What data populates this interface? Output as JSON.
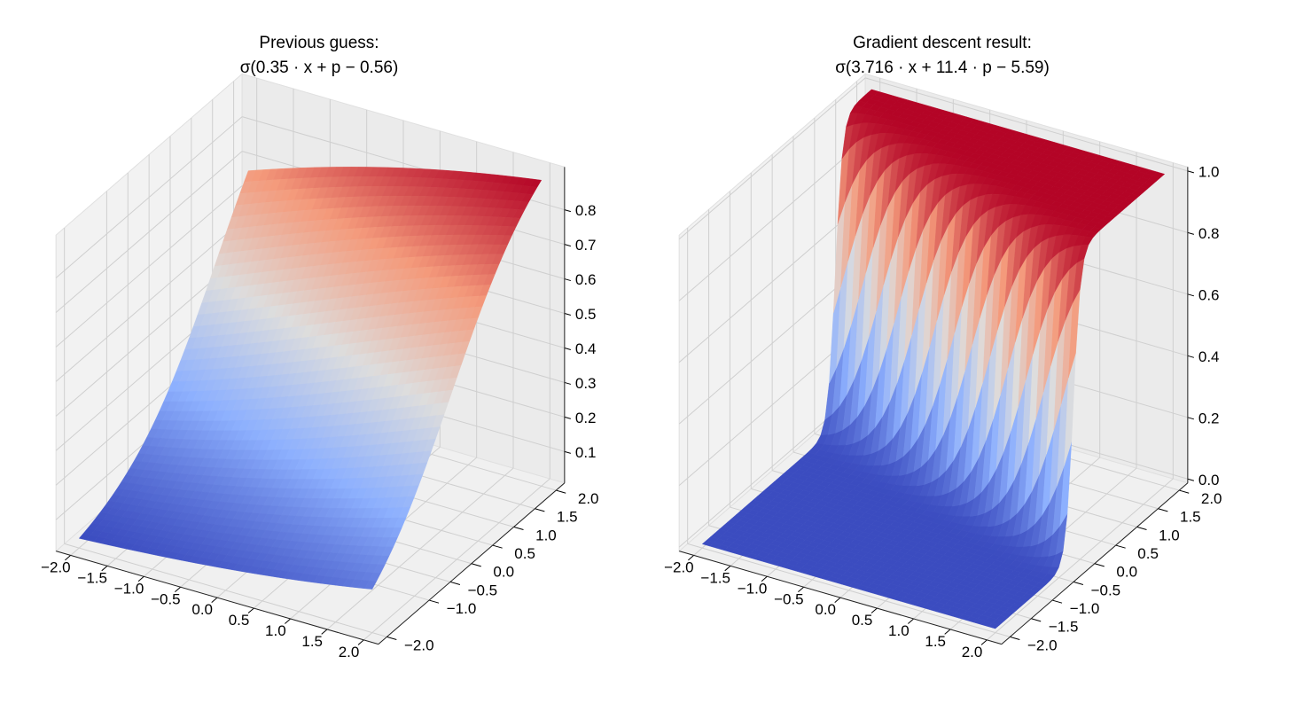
{
  "chart_data": [
    {
      "type": "surface3d",
      "title": "Previous guess:",
      "subtitle": "σ(0.35 · x + p − 0.56)",
      "surface": {
        "x_coef": 0.35,
        "p_coef": 1,
        "bias": -0.56
      },
      "colormap": [
        "#3b4cc0",
        "#8db0fe",
        "#dddddd",
        "#f49a7b",
        "#b40426"
      ],
      "xlim": [
        -2.2,
        2.2
      ],
      "ylim": [
        -2.2,
        2.2
      ],
      "zlim": [
        0.009,
        0.924
      ],
      "xticks": [
        {
          "value": -2,
          "label": "−2.0"
        },
        {
          "value": -1.5,
          "label": "−1.5"
        },
        {
          "value": -1,
          "label": "−1.0"
        },
        {
          "value": -0.5,
          "label": "−0.5"
        },
        {
          "value": 0,
          "label": "0.0"
        },
        0.5,
        {
          "value": 1,
          "label": "1.0"
        },
        1.5,
        {
          "value": 2,
          "label": "2.0"
        }
      ],
      "yticks": [
        {
          "value": -2,
          "label": "−2.0"
        },
        {
          "value": -1,
          "label": "−1.0"
        },
        {
          "value": -0.5,
          "label": "−0.5"
        },
        {
          "value": 0,
          "label": "0.0"
        },
        0.5,
        {
          "value": 1,
          "label": "1.0"
        },
        1.5,
        {
          "value": 2,
          "label": "2.0"
        }
      ],
      "zticks": [
        0.1,
        0.2,
        0.3,
        0.4,
        0.5,
        0.6,
        0.7,
        0.8
      ],
      "grid": true
    },
    {
      "type": "surface3d",
      "title": "Gradient descent result:",
      "subtitle": "σ(3.716 · x + 11.4 · p − 5.59)",
      "surface": {
        "x_coef": 3.716,
        "p_coef": 11.4,
        "bias": -5.59
      },
      "colormap": [
        "#3b4cc0",
        "#8db0fe",
        "#dddddd",
        "#f49a7b",
        "#b40426"
      ],
      "xlim": [
        -2.2,
        2.2
      ],
      "ylim": [
        -2.2,
        2.2
      ],
      "zlim": [
        -0.013,
        1.013
      ],
      "xticks": [
        {
          "value": -2,
          "label": "−2.0"
        },
        {
          "value": -1.5,
          "label": "−1.5"
        },
        {
          "value": -1,
          "label": "−1.0"
        },
        {
          "value": -0.5,
          "label": "−0.5"
        },
        {
          "value": 0,
          "label": "0.0"
        },
        0.5,
        {
          "value": 1,
          "label": "1.0"
        },
        1.5,
        {
          "value": 2,
          "label": "2.0"
        }
      ],
      "yticks": [
        {
          "value": -2,
          "label": "−2.0"
        },
        {
          "value": -1.5,
          "label": "−1.5"
        },
        {
          "value": -1,
          "label": "−1.0"
        },
        {
          "value": -0.5,
          "label": "−0.5"
        },
        {
          "value": 0,
          "label": "0.0"
        },
        0.5,
        {
          "value": 1,
          "label": "1.0"
        },
        1.5,
        {
          "value": 2,
          "label": "2.0"
        }
      ],
      "zticks": [
        {
          "value": 0,
          "label": "0.0"
        },
        0.2,
        0.4,
        0.6,
        0.8,
        {
          "value": 1,
          "label": "1.0"
        }
      ],
      "grid": true
    }
  ]
}
